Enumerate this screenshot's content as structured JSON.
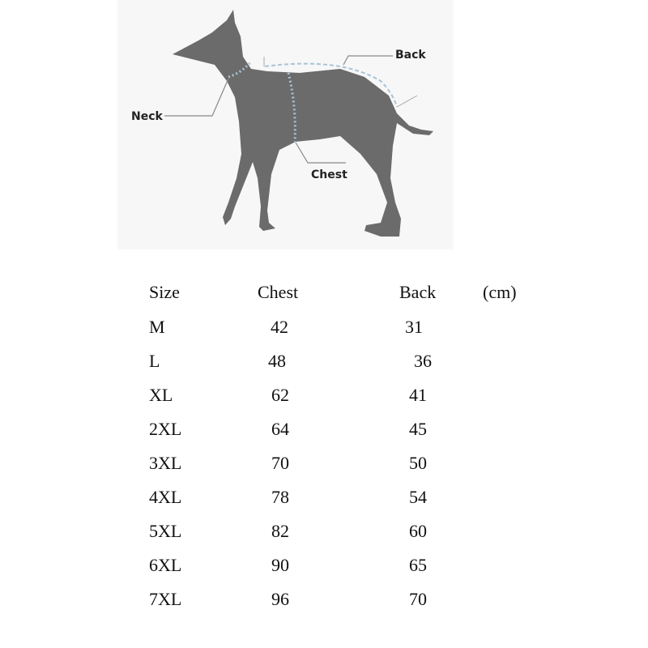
{
  "diagram": {
    "labels": {
      "neck": "Neck",
      "back": "Back",
      "chest": "Chest"
    },
    "colors": {
      "dog": "#6b6b6b",
      "measure": "#a9c3d6",
      "background": "#f7f7f7"
    }
  },
  "table": {
    "headers": [
      "Size",
      "Chest",
      "Back",
      "(cm)"
    ],
    "rows": [
      [
        "M",
        "42",
        "31"
      ],
      [
        "L",
        "48",
        "36"
      ],
      [
        "XL",
        "62",
        "41"
      ],
      [
        "2XL",
        "64",
        "45"
      ],
      [
        "3XL",
        "70",
        "50"
      ],
      [
        "4XL",
        "78",
        "54"
      ],
      [
        "5XL",
        "82",
        "60"
      ],
      [
        "6XL",
        "90",
        "65"
      ],
      [
        "7XL",
        "96",
        "70"
      ]
    ]
  }
}
